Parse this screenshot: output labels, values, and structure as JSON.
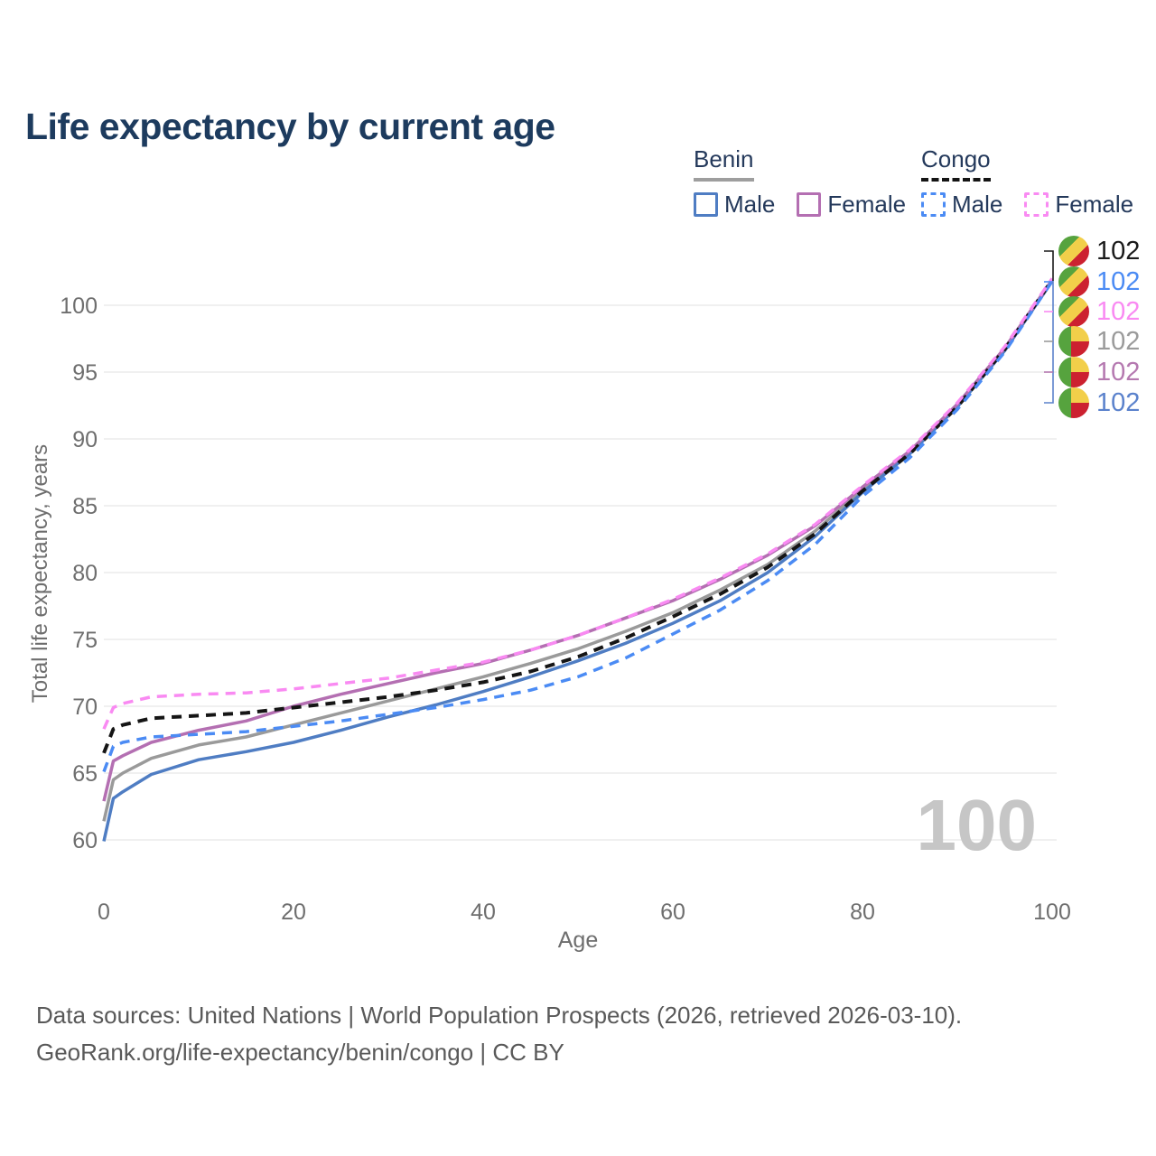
{
  "title": "Life expectancy by current age",
  "legend": {
    "groups": [
      {
        "label": "Benin",
        "line_style": "solid",
        "line_color": "#9a9a9a",
        "items": [
          {
            "label": "Male",
            "color": "#4f7dc3",
            "dashed": false
          },
          {
            "label": "Female",
            "color": "#b46fb2",
            "dashed": false
          }
        ]
      },
      {
        "label": "Congo",
        "line_style": "dashed",
        "line_color": "#141414",
        "items": [
          {
            "label": "Male",
            "color": "#4b8bf4",
            "dashed": true
          },
          {
            "label": "Female",
            "color": "#f98af2",
            "dashed": true
          }
        ]
      }
    ]
  },
  "axes": {
    "xlabel": "Age",
    "ylabel": "Total life expectancy, years",
    "xticks": [
      0,
      20,
      40,
      60,
      80,
      100
    ],
    "yticks": [
      60,
      65,
      70,
      75,
      80,
      85,
      90,
      95,
      100
    ]
  },
  "watermark": "100",
  "end_labels": [
    {
      "value": "102",
      "flag": "congo",
      "series": "Congo — Both sexes",
      "color": "#1a1a1a"
    },
    {
      "value": "102",
      "flag": "congo",
      "series": "Congo — Male",
      "color": "#4b8bf4"
    },
    {
      "value": "102",
      "flag": "congo",
      "series": "Congo — Female",
      "color": "#f98af2"
    },
    {
      "value": "102",
      "flag": "benin",
      "series": "Benin — Both sexes",
      "color": "#9b9b9b"
    },
    {
      "value": "102",
      "flag": "benin",
      "series": "Benin — Female",
      "color": "#b579b0"
    },
    {
      "value": "102",
      "flag": "benin",
      "series": "Benin — Male",
      "color": "#5b82cc"
    }
  ],
  "footer": {
    "line1": "Data sources: United Nations | World Population Prospects (2026, retrieved 2026-03-10).",
    "line2": "GeoRank.org/life-expectancy/benin/congo | CC BY"
  },
  "chart_data": {
    "type": "line",
    "title": "Life expectancy by current age",
    "xlabel": "Age",
    "ylabel": "Total life expectancy, years",
    "xlim": [
      0,
      100
    ],
    "ylim": [
      58,
      103
    ],
    "grid": true,
    "legend_position": "top-right",
    "age_indicator": "100",
    "end_value_label": "102",
    "x": [
      0,
      1,
      2,
      5,
      10,
      15,
      20,
      25,
      30,
      35,
      40,
      45,
      50,
      55,
      60,
      65,
      70,
      75,
      80,
      85,
      90,
      95,
      100
    ],
    "series": [
      {
        "name": "Benin — Both sexes",
        "color": "#9a9a9a",
        "style": "solid",
        "values": [
          61.4,
          64.5,
          65.0,
          66.1,
          67.1,
          67.7,
          68.6,
          69.5,
          70.4,
          71.3,
          72.2,
          73.2,
          74.3,
          75.6,
          77.0,
          78.7,
          80.6,
          83.1,
          86.2,
          89.0,
          92.5,
          96.7,
          101.8
        ]
      },
      {
        "name": "Benin — Male",
        "color": "#4f7dc3",
        "style": "solid",
        "values": [
          59.9,
          63.1,
          63.6,
          64.9,
          66.0,
          66.6,
          67.3,
          68.2,
          69.2,
          70.1,
          71.1,
          72.2,
          73.4,
          74.7,
          76.2,
          77.9,
          80.0,
          82.7,
          86.0,
          88.9,
          92.4,
          96.6,
          101.8
        ]
      },
      {
        "name": "Benin — Female",
        "color": "#b46fb2",
        "style": "solid",
        "values": [
          62.9,
          65.9,
          66.3,
          67.3,
          68.2,
          68.9,
          70.0,
          70.9,
          71.7,
          72.5,
          73.2,
          74.2,
          75.3,
          76.6,
          77.9,
          79.5,
          81.3,
          83.5,
          86.4,
          89.1,
          92.6,
          96.8,
          101.9
        ]
      },
      {
        "name": "Congo — Both sexes",
        "color": "#151515",
        "style": "dashed",
        "values": [
          66.5,
          68.3,
          68.6,
          69.1,
          69.3,
          69.5,
          69.9,
          70.3,
          70.7,
          71.2,
          71.8,
          72.6,
          73.7,
          75.1,
          76.7,
          78.4,
          80.4,
          82.9,
          86.1,
          88.9,
          92.4,
          96.7,
          101.9
        ]
      },
      {
        "name": "Congo — Male",
        "color": "#4b8bf4",
        "style": "dashed",
        "values": [
          65.1,
          67.0,
          67.3,
          67.7,
          67.9,
          68.1,
          68.5,
          68.9,
          69.4,
          69.9,
          70.5,
          71.2,
          72.2,
          73.6,
          75.4,
          77.2,
          79.4,
          82.1,
          85.7,
          88.6,
          92.2,
          96.5,
          101.8
        ]
      },
      {
        "name": "Congo — Female",
        "color": "#f98af2",
        "style": "dashed",
        "values": [
          68.3,
          69.9,
          70.2,
          70.7,
          70.9,
          71.0,
          71.3,
          71.7,
          72.1,
          72.7,
          73.3,
          74.2,
          75.3,
          76.6,
          78.0,
          79.6,
          81.4,
          83.6,
          86.5,
          89.2,
          92.7,
          96.9,
          102.0
        ]
      }
    ]
  }
}
